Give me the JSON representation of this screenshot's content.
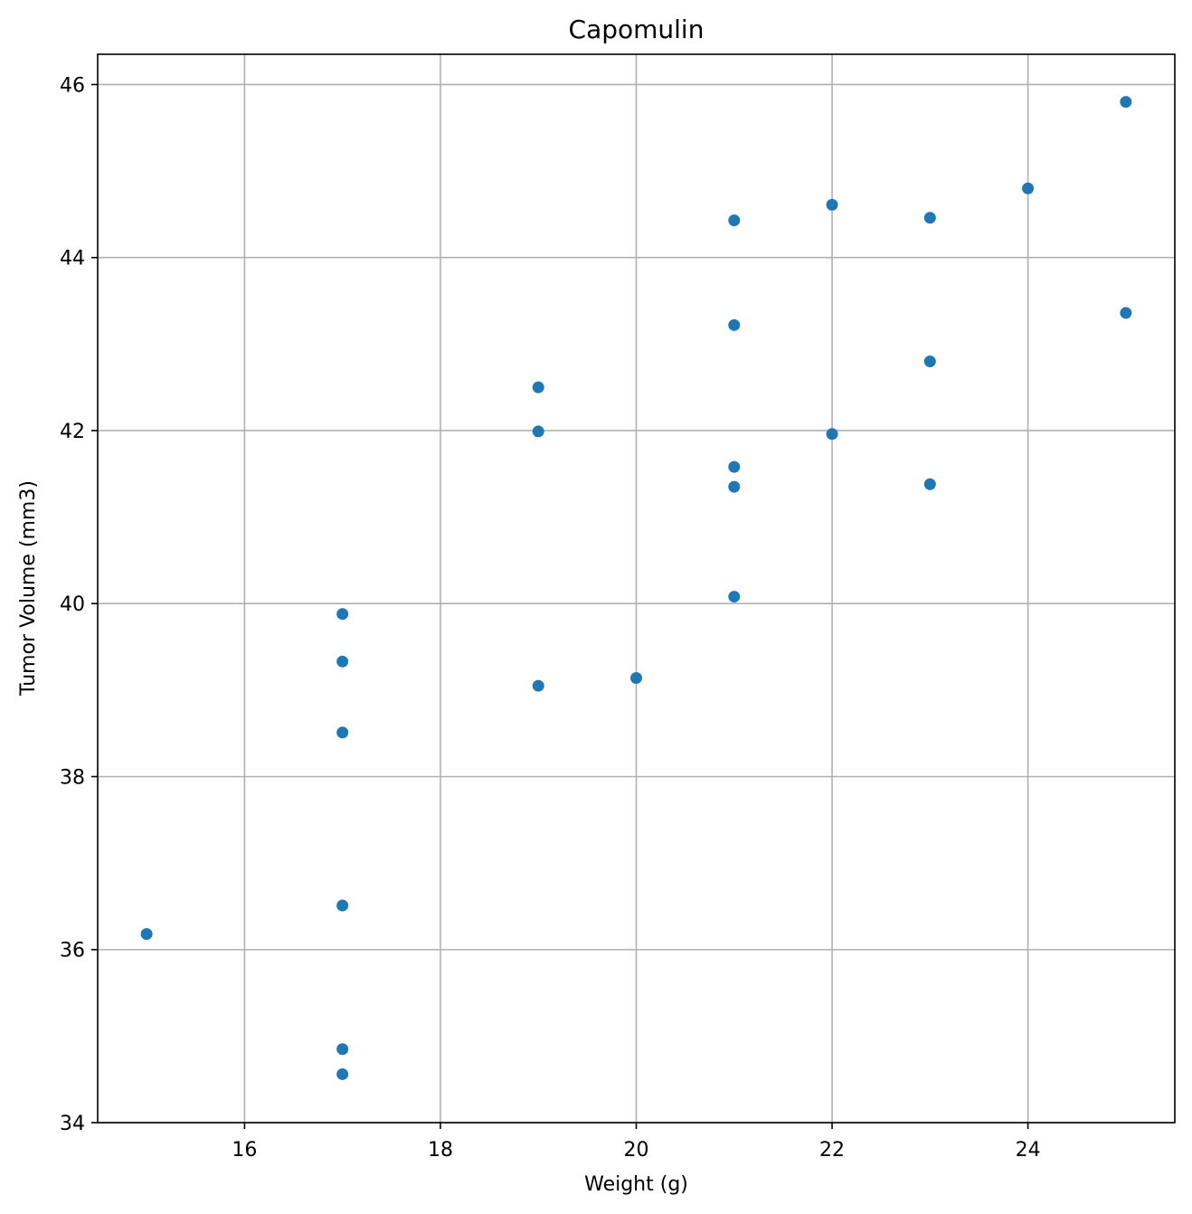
{
  "chart_data": {
    "type": "scatter",
    "title": "Capomulin",
    "xlabel": "Weight (g)",
    "ylabel": "Tumor Volume (mm3)",
    "xlim": [
      14.5,
      25.5
    ],
    "ylim": [
      34,
      46.35
    ],
    "xticks": [
      16,
      18,
      20,
      22,
      24
    ],
    "yticks": [
      34,
      36,
      38,
      40,
      42,
      44,
      46
    ],
    "xtick_labels": [
      "16",
      "18",
      "20",
      "22",
      "24"
    ],
    "ytick_labels": [
      "34",
      "36",
      "38",
      "40",
      "42",
      "44",
      "46"
    ],
    "grid": true,
    "legend": "none",
    "marker_color": "#1f77b4",
    "points": [
      {
        "x": 15,
        "y": 36.18
      },
      {
        "x": 17,
        "y": 39.88
      },
      {
        "x": 17,
        "y": 39.33
      },
      {
        "x": 17,
        "y": 38.51
      },
      {
        "x": 17,
        "y": 36.51
      },
      {
        "x": 17,
        "y": 34.85
      },
      {
        "x": 17,
        "y": 34.56
      },
      {
        "x": 19,
        "y": 42.5
      },
      {
        "x": 19,
        "y": 41.99
      },
      {
        "x": 19,
        "y": 39.05
      },
      {
        "x": 20,
        "y": 39.14
      },
      {
        "x": 21,
        "y": 44.43
      },
      {
        "x": 21,
        "y": 43.22
      },
      {
        "x": 21,
        "y": 41.58
      },
      {
        "x": 21,
        "y": 41.35
      },
      {
        "x": 21,
        "y": 40.08
      },
      {
        "x": 22,
        "y": 44.61
      },
      {
        "x": 22,
        "y": 41.96
      },
      {
        "x": 23,
        "y": 44.46
      },
      {
        "x": 23,
        "y": 42.8
      },
      {
        "x": 23,
        "y": 41.38
      },
      {
        "x": 24,
        "y": 44.8
      },
      {
        "x": 25,
        "y": 45.8
      },
      {
        "x": 25,
        "y": 43.36
      }
    ]
  }
}
